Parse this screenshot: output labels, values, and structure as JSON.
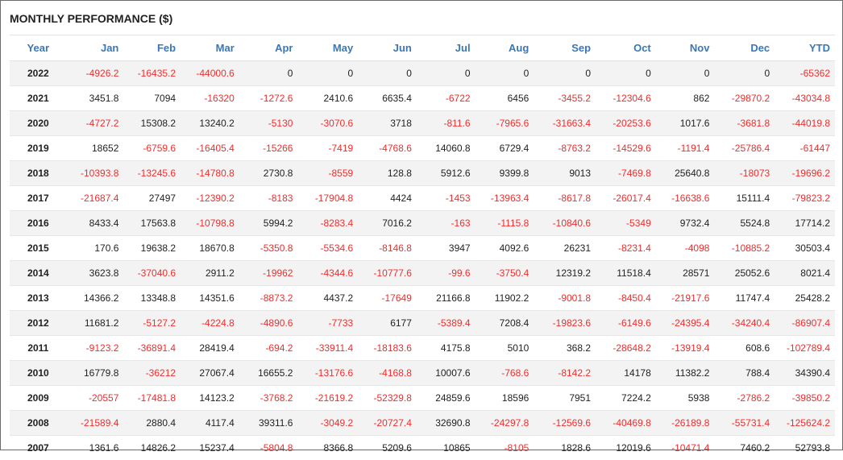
{
  "title": "MONTHLY PERFORMANCE ($)",
  "colors": {
    "header_text": "#3a77b5",
    "negative": "#ee2e2e",
    "positive": "#222222",
    "row_stripe": "#f3f3f3"
  },
  "columns": [
    "Year",
    "Jan",
    "Feb",
    "Mar",
    "Apr",
    "May",
    "Jun",
    "Jul",
    "Aug",
    "Sep",
    "Oct",
    "Nov",
    "Dec",
    "YTD"
  ],
  "rows": [
    {
      "year": "2022",
      "values": [
        "-4926.2",
        "-16435.2",
        "-44000.6",
        "0",
        "0",
        "0",
        "0",
        "0",
        "0",
        "0",
        "0",
        "0",
        "-65362"
      ]
    },
    {
      "year": "2021",
      "values": [
        "3451.8",
        "7094",
        "-16320",
        "-1272.6",
        "2410.6",
        "6635.4",
        "-6722",
        "6456",
        "-3455.2",
        "-12304.6",
        "862",
        "-29870.2",
        "-43034.8"
      ]
    },
    {
      "year": "2020",
      "values": [
        "-4727.2",
        "15308.2",
        "13240.2",
        "-5130",
        "-3070.6",
        "3718",
        "-811.6",
        "-7965.6",
        "-31663.4",
        "-20253.6",
        "1017.6",
        "-3681.8",
        "-44019.8"
      ]
    },
    {
      "year": "2019",
      "values": [
        "18652",
        "-6759.6",
        "-16405.4",
        "-15266",
        "-7419",
        "-4768.6",
        "14060.8",
        "6729.4",
        "-8763.2",
        "-14529.6",
        "-1191.4",
        "-25786.4",
        "-61447"
      ]
    },
    {
      "year": "2018",
      "values": [
        "-10393.8",
        "-13245.6",
        "-14780.8",
        "2730.8",
        "-8559",
        "128.8",
        "5912.6",
        "9399.8",
        "9013",
        "-7469.8",
        "25640.8",
        "-18073",
        "-19696.2"
      ]
    },
    {
      "year": "2017",
      "values": [
        "-21687.4",
        "27497",
        "-12390.2",
        "-8183",
        "-17904.8",
        "4424",
        "-1453",
        "-13963.4",
        "-8617.8",
        "-26017.4",
        "-16638.6",
        "15111.4",
        "-79823.2"
      ]
    },
    {
      "year": "2016",
      "values": [
        "8433.4",
        "17563.8",
        "-10798.8",
        "5994.2",
        "-8283.4",
        "7016.2",
        "-163",
        "-1115.8",
        "-10840.6",
        "-5349",
        "9732.4",
        "5524.8",
        "17714.2"
      ]
    },
    {
      "year": "2015",
      "values": [
        "170.6",
        "19638.2",
        "18670.8",
        "-5350.8",
        "-5534.6",
        "-8146.8",
        "3947",
        "4092.6",
        "26231",
        "-8231.4",
        "-4098",
        "-10885.2",
        "30503.4"
      ]
    },
    {
      "year": "2014",
      "values": [
        "3623.8",
        "-37040.6",
        "2911.2",
        "-19962",
        "-4344.6",
        "-10777.6",
        "-99.6",
        "-3750.4",
        "12319.2",
        "11518.4",
        "28571",
        "25052.6",
        "8021.4"
      ]
    },
    {
      "year": "2013",
      "values": [
        "14366.2",
        "13348.8",
        "14351.6",
        "-8873.2",
        "4437.2",
        "-17649",
        "21166.8",
        "11902.2",
        "-9001.8",
        "-8450.4",
        "-21917.6",
        "11747.4",
        "25428.2"
      ]
    },
    {
      "year": "2012",
      "values": [
        "11681.2",
        "-5127.2",
        "-4224.8",
        "-4890.6",
        "-7733",
        "6177",
        "-5389.4",
        "7208.4",
        "-19823.6",
        "-6149.6",
        "-24395.4",
        "-34240.4",
        "-86907.4"
      ]
    },
    {
      "year": "2011",
      "values": [
        "-9123.2",
        "-36891.4",
        "28419.4",
        "-694.2",
        "-33911.4",
        "-18183.6",
        "4175.8",
        "5010",
        "368.2",
        "-28648.2",
        "-13919.4",
        "608.6",
        "-102789.4"
      ]
    },
    {
      "year": "2010",
      "values": [
        "16779.8",
        "-36212",
        "27067.4",
        "16655.2",
        "-13176.6",
        "-4168.8",
        "10007.6",
        "-768.6",
        "-8142.2",
        "14178",
        "11382.2",
        "788.4",
        "34390.4"
      ]
    },
    {
      "year": "2009",
      "values": [
        "-20557",
        "-17481.8",
        "14123.2",
        "-3768.2",
        "-21619.2",
        "-52329.8",
        "24859.6",
        "18596",
        "7951",
        "7224.2",
        "5938",
        "-2786.2",
        "-39850.2"
      ]
    },
    {
      "year": "2008",
      "values": [
        "-21589.4",
        "2880.4",
        "4117.4",
        "39311.6",
        "-3049.2",
        "-20727.4",
        "32690.8",
        "-24297.8",
        "-12569.6",
        "-40469.8",
        "-26189.8",
        "-55731.4",
        "-125624.2"
      ]
    },
    {
      "year": "2007",
      "values": [
        "1361.6",
        "14826.2",
        "15237.4",
        "-5804.8",
        "8366.8",
        "5209.6",
        "10865",
        "-8105",
        "1828.6",
        "12019.6",
        "-10471.4",
        "7460.2",
        "52793.8"
      ]
    }
  ]
}
